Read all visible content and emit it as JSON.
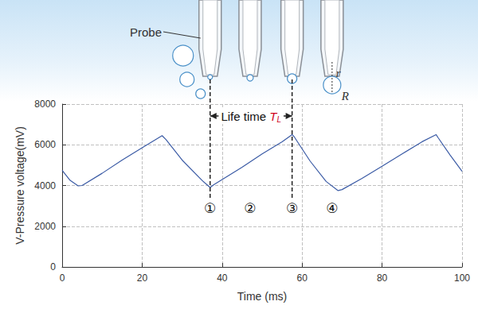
{
  "chart_data": {
    "type": "line",
    "x_label": "Time (ms)",
    "y_label": "V-Pressure voltage(mV)",
    "series": [
      {
        "name": "V-Pressure voltage",
        "color": "#3b5ba5",
        "x": [
          0,
          2,
          4,
          5,
          10,
          15,
          20,
          25,
          26,
          30,
          35,
          37,
          38,
          45,
          50,
          55,
          57.5,
          58,
          62,
          66,
          69,
          70,
          75,
          80,
          85,
          90,
          93.5,
          94,
          97,
          100
        ],
        "values": [
          4750,
          4250,
          3980,
          4000,
          4600,
          5250,
          5850,
          6450,
          6250,
          5250,
          4250,
          3900,
          4050,
          4900,
          5550,
          6150,
          6500,
          6400,
          5200,
          4200,
          3750,
          3800,
          4350,
          4950,
          5550,
          6150,
          6500,
          6350,
          5500,
          4700
        ]
      }
    ],
    "xlim": [
      0,
      100
    ],
    "xticks": [
      0,
      20,
      40,
      60,
      80,
      100
    ],
    "ylim": [
      0,
      8000
    ],
    "yticks": [
      0,
      2000,
      4000,
      6000,
      8000
    ],
    "grid": true,
    "annotations": {
      "probe_label": "Probe",
      "lifetime_label": "Life time",
      "lifetime_symbol": "T",
      "lifetime_subscript": "L",
      "lifetime_start": 37,
      "lifetime_end": 57.5,
      "markers": [
        {
          "label": "①",
          "x": 37
        },
        {
          "label": "②",
          "x": 47
        },
        {
          "label": "③",
          "x": 57.5
        },
        {
          "label": "④",
          "x": 67.5
        }
      ],
      "radius_labels": [
        "r",
        "R"
      ]
    }
  }
}
